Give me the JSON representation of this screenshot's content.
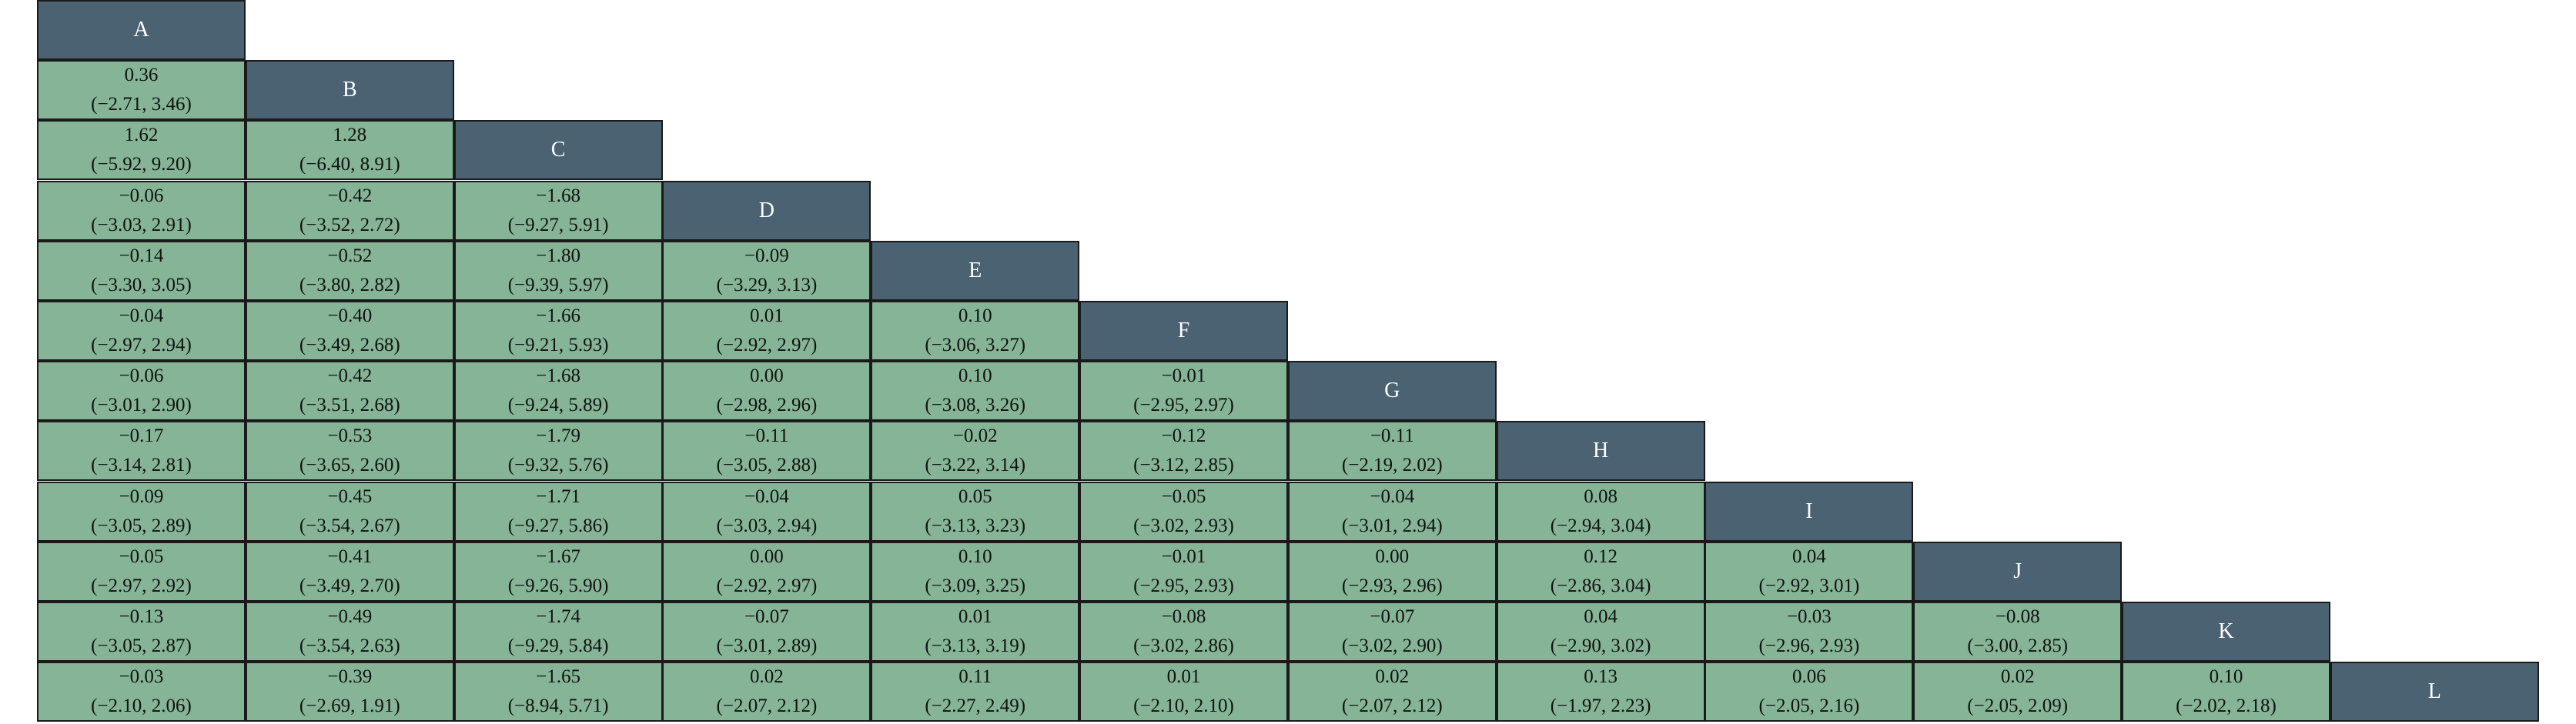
{
  "treatments": [
    "A",
    "B",
    "C",
    "D",
    "E",
    "F",
    "G",
    "H",
    "I",
    "J",
    "K",
    "L"
  ],
  "colors": {
    "diagonal": "#4a6272",
    "cell": "#85b596",
    "border": "#1a1a1a"
  },
  "rows": [
    [],
    [
      {
        "est": "0.36",
        "ci": "(−2.71, 3.46)"
      }
    ],
    [
      {
        "est": "1.62",
        "ci": "(−5.92, 9.20)"
      },
      {
        "est": "1.28",
        "ci": "(−6.40, 8.91)"
      }
    ],
    [
      {
        "est": "−0.06",
        "ci": "(−3.03, 2.91)"
      },
      {
        "est": "−0.42",
        "ci": "(−3.52, 2.72)"
      },
      {
        "est": "−1.68",
        "ci": "(−9.27, 5.91)"
      }
    ],
    [
      {
        "est": "−0.14",
        "ci": "(−3.30, 3.05)"
      },
      {
        "est": "−0.52",
        "ci": "(−3.80, 2.82)"
      },
      {
        "est": "−1.80",
        "ci": "(−9.39, 5.97)"
      },
      {
        "est": "−0.09",
        "ci": "(−3.29, 3.13)"
      }
    ],
    [
      {
        "est": "−0.04",
        "ci": "(−2.97, 2.94)"
      },
      {
        "est": "−0.40",
        "ci": "(−3.49, 2.68)"
      },
      {
        "est": "−1.66",
        "ci": "(−9.21, 5.93)"
      },
      {
        "est": "0.01",
        "ci": "(−2.92, 2.97)"
      },
      {
        "est": "0.10",
        "ci": "(−3.06, 3.27)"
      }
    ],
    [
      {
        "est": "−0.06",
        "ci": "(−3.01, 2.90)"
      },
      {
        "est": "−0.42",
        "ci": "(−3.51, 2.68)"
      },
      {
        "est": "−1.68",
        "ci": "(−9.24, 5.89)"
      },
      {
        "est": "0.00",
        "ci": "(−2.98, 2.96)"
      },
      {
        "est": "0.10",
        "ci": "(−3.08, 3.26)"
      },
      {
        "est": "−0.01",
        "ci": "(−2.95, 2.97)"
      }
    ],
    [
      {
        "est": "−0.17",
        "ci": "(−3.14, 2.81)"
      },
      {
        "est": "−0.53",
        "ci": "(−3.65, 2.60)"
      },
      {
        "est": "−1.79",
        "ci": "(−9.32, 5.76)"
      },
      {
        "est": "−0.11",
        "ci": "(−3.05, 2.88)"
      },
      {
        "est": "−0.02",
        "ci": "(−3.22, 3.14)"
      },
      {
        "est": "−0.12",
        "ci": "(−3.12, 2.85)"
      },
      {
        "est": "−0.11",
        "ci": "(−2.19, 2.02)"
      }
    ],
    [
      {
        "est": "−0.09",
        "ci": "(−3.05, 2.89)"
      },
      {
        "est": "−0.45",
        "ci": "(−3.54, 2.67)"
      },
      {
        "est": "−1.71",
        "ci": "(−9.27, 5.86)"
      },
      {
        "est": "−0.04",
        "ci": "(−3.03, 2.94)"
      },
      {
        "est": "0.05",
        "ci": "(−3.13, 3.23)"
      },
      {
        "est": "−0.05",
        "ci": "(−3.02, 2.93)"
      },
      {
        "est": "−0.04",
        "ci": "(−3.01, 2.94)"
      },
      {
        "est": "0.08",
        "ci": "(−2.94, 3.04)"
      }
    ],
    [
      {
        "est": "−0.05",
        "ci": "(−2.97, 2.92)"
      },
      {
        "est": "−0.41",
        "ci": "(−3.49, 2.70)"
      },
      {
        "est": "−1.67",
        "ci": "(−9.26, 5.90)"
      },
      {
        "est": "0.00",
        "ci": "(−2.92, 2.97)"
      },
      {
        "est": "0.10",
        "ci": "(−3.09, 3.25)"
      },
      {
        "est": "−0.01",
        "ci": "(−2.95, 2.93)"
      },
      {
        "est": "0.00",
        "ci": "(−2.93, 2.96)"
      },
      {
        "est": "0.12",
        "ci": "(−2.86, 3.04)"
      },
      {
        "est": "0.04",
        "ci": "(−2.92, 3.01)"
      }
    ],
    [
      {
        "est": "−0.13",
        "ci": "(−3.05, 2.87)"
      },
      {
        "est": "−0.49",
        "ci": "(−3.54, 2.63)"
      },
      {
        "est": "−1.74",
        "ci": "(−9.29, 5.84)"
      },
      {
        "est": "−0.07",
        "ci": "(−3.01, 2.89)"
      },
      {
        "est": "0.01",
        "ci": "(−3.13, 3.19)"
      },
      {
        "est": "−0.08",
        "ci": "(−3.02, 2.86)"
      },
      {
        "est": "−0.07",
        "ci": "(−3.02, 2.90)"
      },
      {
        "est": "0.04",
        "ci": "(−2.90, 3.02)"
      },
      {
        "est": "−0.03",
        "ci": "(−2.96, 2.93)"
      },
      {
        "est": "−0.08",
        "ci": "(−3.00, 2.85)"
      }
    ],
    [
      {
        "est": "−0.03",
        "ci": "(−2.10, 2.06)"
      },
      {
        "est": "−0.39",
        "ci": "(−2.69, 1.91)"
      },
      {
        "est": "−1.65",
        "ci": "(−8.94, 5.71)"
      },
      {
        "est": "0.02",
        "ci": "(−2.07, 2.12)"
      },
      {
        "est": "0.11",
        "ci": "(−2.27, 2.49)"
      },
      {
        "est": "0.01",
        "ci": "(−2.10, 2.10)"
      },
      {
        "est": "0.02",
        "ci": "(−2.07, 2.12)"
      },
      {
        "est": "0.13",
        "ci": "(−1.97, 2.23)"
      },
      {
        "est": "0.06",
        "ci": "(−2.05, 2.16)"
      },
      {
        "est": "0.02",
        "ci": "(−2.05, 2.09)"
      },
      {
        "est": "0.10",
        "ci": "(−2.02, 2.18)"
      }
    ]
  ]
}
